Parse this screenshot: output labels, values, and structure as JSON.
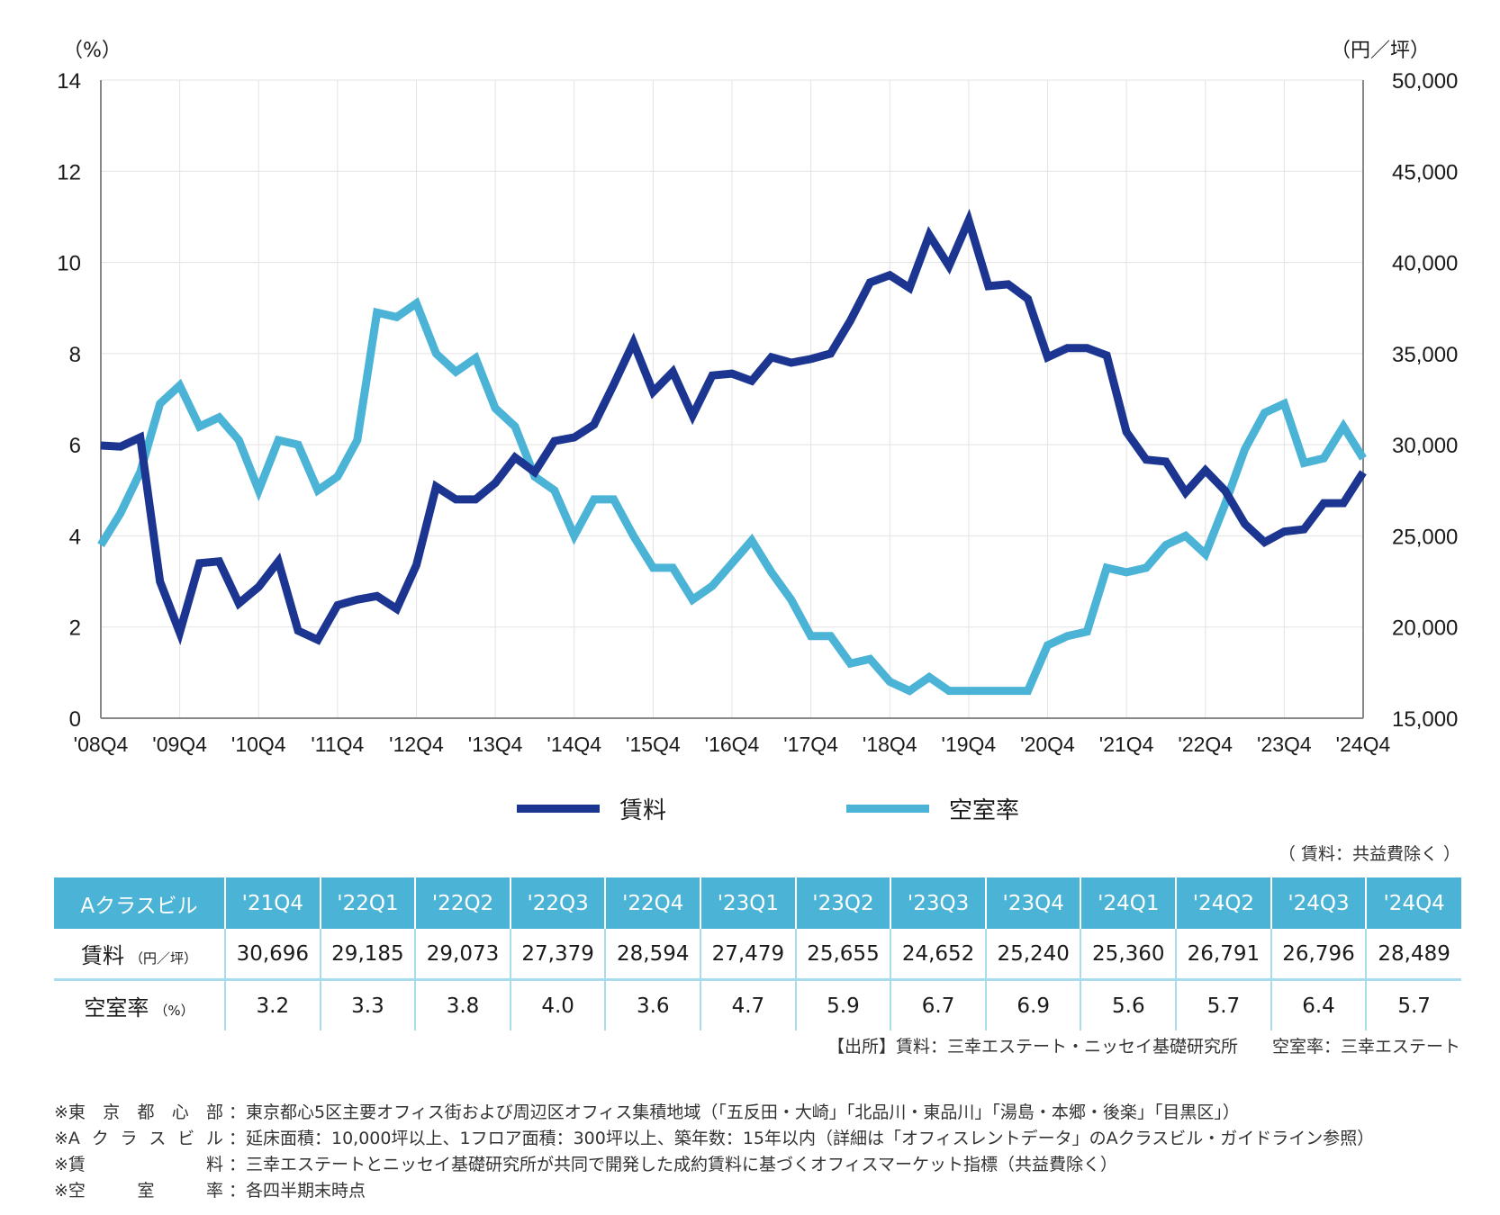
{
  "chart_data": {
    "type": "line",
    "title": "",
    "left_axis": {
      "unit_label": "（%）",
      "ticks": [
        0,
        2,
        4,
        6,
        8,
        10,
        12,
        14
      ],
      "range": [
        0,
        14
      ]
    },
    "right_axis": {
      "unit_label": "（円／坪）",
      "ticks": [
        "15,000",
        "20,000",
        "25,000",
        "30,000",
        "35,000",
        "40,000",
        "45,000",
        "50,000"
      ],
      "range": [
        15000,
        50000
      ]
    },
    "x_tick_labels": [
      "'08Q4",
      "'09Q4",
      "'10Q4",
      "'11Q4",
      "'12Q4",
      "'13Q4",
      "'14Q4",
      "'15Q4",
      "'16Q4",
      "'17Q4",
      "'18Q4",
      "'19Q4",
      "'20Q4",
      "'21Q4",
      "'22Q4",
      "'23Q4",
      "'24Q4"
    ],
    "x_start": "'08Q4",
    "x_end": "'24Q4",
    "grid": true,
    "legend_position": "bottom-center",
    "series": [
      {
        "name": "賃料",
        "axis": "right",
        "color": "#1b3591",
        "values": [
          29960,
          29900,
          30400,
          22500,
          19700,
          23500,
          23600,
          21300,
          22200,
          23600,
          19800,
          19300,
          21200,
          21500,
          21700,
          21000,
          23400,
          27700,
          27000,
          27000,
          27900,
          29300,
          28500,
          30200,
          30400,
          31100,
          33300,
          35600,
          32900,
          34000,
          31600,
          33800,
          33900,
          33500,
          34800,
          34500,
          34700,
          35000,
          36800,
          38900,
          39300,
          38600,
          41500,
          39800,
          42300,
          38700,
          38800,
          38000,
          34800,
          35300,
          35300,
          34900,
          30696,
          29185,
          29073,
          27379,
          28594,
          27479,
          25655,
          24652,
          25240,
          25360,
          26791,
          26796,
          28489
        ]
      },
      {
        "name": "空室率",
        "axis": "left",
        "color": "#4ab3d6",
        "values": [
          3.8,
          4.5,
          5.4,
          6.9,
          7.3,
          6.4,
          6.6,
          6.1,
          5.0,
          6.1,
          6.0,
          5.0,
          5.3,
          6.1,
          8.9,
          8.8,
          9.1,
          8.0,
          7.6,
          7.9,
          6.8,
          6.4,
          5.3,
          5.0,
          4.0,
          4.8,
          4.8,
          4.0,
          3.3,
          3.3,
          2.6,
          2.9,
          3.4,
          3.9,
          3.2,
          2.6,
          1.8,
          1.8,
          1.2,
          1.3,
          0.8,
          0.6,
          0.9,
          0.6,
          0.6,
          0.6,
          0.6,
          0.6,
          1.6,
          1.8,
          1.9,
          3.3,
          3.2,
          3.3,
          3.8,
          4.0,
          3.6,
          4.7,
          5.9,
          6.7,
          6.9,
          5.6,
          5.7,
          6.4,
          5.7
        ]
      }
    ]
  },
  "legend": {
    "rent_label": "賃料",
    "vacancy_label": "空室率"
  },
  "table": {
    "note": "（ 賃料：共益費除く ）",
    "corner_label": "Aクラスビル",
    "columns": [
      "'21Q4",
      "'22Q1",
      "'22Q2",
      "'22Q3",
      "'22Q4",
      "'23Q1",
      "'23Q2",
      "'23Q3",
      "'23Q4",
      "'24Q1",
      "'24Q2",
      "'24Q3",
      "'24Q4"
    ],
    "rent_row": {
      "label": "賃料",
      "unit": "（円／坪）",
      "values": [
        "30,696",
        "29,185",
        "29,073",
        "27,379",
        "28,594",
        "27,479",
        "25,655",
        "24,652",
        "25,240",
        "25,360",
        "26,791",
        "26,796",
        "28,489"
      ]
    },
    "vacancy_row": {
      "label": "空室率",
      "unit": "（%）",
      "values": [
        "3.2",
        "3.3",
        "3.8",
        "4.0",
        "3.6",
        "4.7",
        "5.9",
        "6.7",
        "6.9",
        "5.6",
        "5.7",
        "6.4",
        "5.7"
      ]
    }
  },
  "source": "【出所】賃料：三幸エステート・ニッセイ基礎研究所　　空室率：三幸エステート",
  "footnotes": [
    {
      "label": [
        "※東",
        "京",
        "都",
        "心",
        "部"
      ],
      "text": "：東京都心5区主要オフィス街および周辺区オフィス集積地域（「五反田・大崎」「北品川・東品川」「湯島・本郷・後楽」「目黒区」）"
    },
    {
      "label": [
        "※A",
        "ク",
        "ラ",
        "ス",
        "ビ",
        "ル"
      ],
      "text": "：延床面積：10,000坪以上、1フロア面積：300坪以上、築年数：15年以内（詳細は「オフィスレントデータ」のAクラスビル・ガイドライン参照）"
    },
    {
      "label": [
        "※賃",
        "料"
      ],
      "text": "：三幸エステートとニッセイ基礎研究所が共同で開発した成約賃料に基づくオフィスマーケット指標（共益費除く）"
    },
    {
      "label": [
        "※空",
        "室",
        "率"
      ],
      "text": "：各四半期末時点"
    }
  ]
}
